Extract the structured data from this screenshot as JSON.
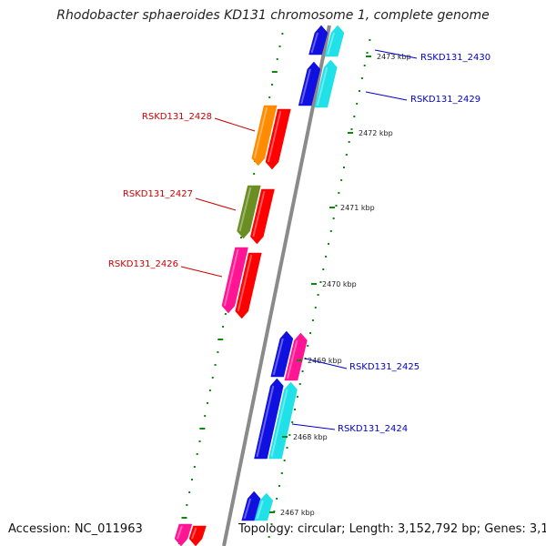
{
  "title": "Rhodobacter sphaeroides KD131 chromosome 1, complete genome",
  "footer": {
    "accession": "Accession: NC_011963",
    "topology": "Topology: circular; Length: 3,152,792 bp; Genes: 3,143"
  },
  "colors": {
    "backbone": "#8a8a8a",
    "tick": "#0a8a0a",
    "plus_label": "#0000cc",
    "minus_label": "#cc0000",
    "blue": "#1010e0",
    "cyan": "#20e0e8",
    "orange": "#ff8c00",
    "olive": "#6b8e23",
    "pink": "#ff1493",
    "red": "#ff0000"
  },
  "scale_ticks": [
    {
      "label": "2473 kbp"
    },
    {
      "label": "2472 kbp"
    },
    {
      "label": "2471 kbp"
    },
    {
      "label": "2470 kbp"
    },
    {
      "label": "2469 kbp"
    },
    {
      "label": "2468 kbp"
    },
    {
      "label": "2467 kbp"
    }
  ],
  "gene_labels": [
    {
      "name": "RSKD131_2430",
      "strand": "plus"
    },
    {
      "name": "RSKD131_2429",
      "strand": "plus"
    },
    {
      "name": "RSKD131_2428",
      "strand": "minus"
    },
    {
      "name": "RSKD131_2427",
      "strand": "minus"
    },
    {
      "name": "RSKD131_2426",
      "strand": "minus"
    },
    {
      "name": "RSKD131_2425",
      "strand": "plus"
    },
    {
      "name": "RSKD131_2424",
      "strand": "plus"
    }
  ]
}
